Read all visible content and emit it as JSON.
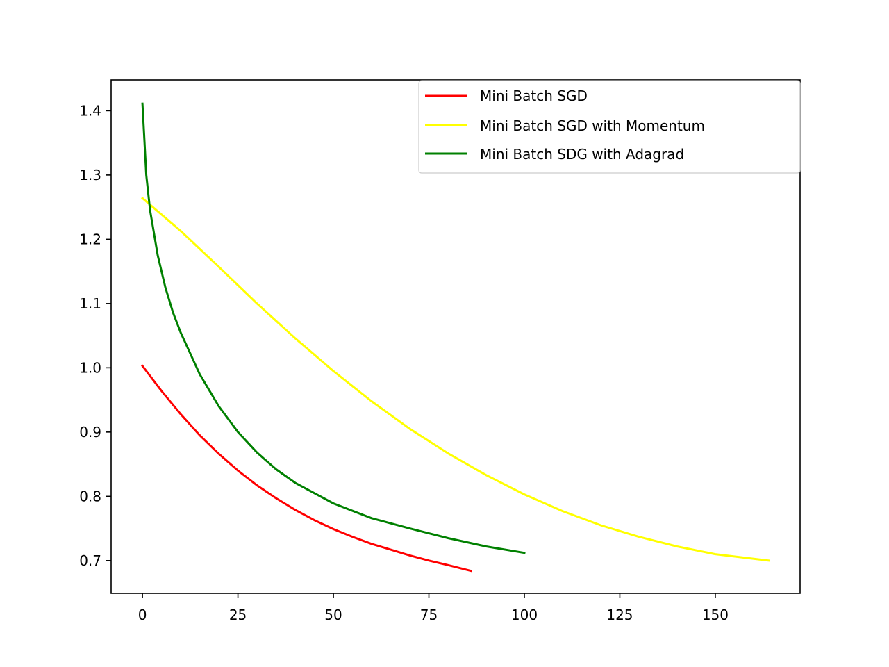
{
  "chart_data": {
    "type": "line",
    "title": "",
    "xlabel": "",
    "ylabel": "",
    "xlim": [
      -8.2,
      172.2
    ],
    "ylim": [
      0.649,
      1.448
    ],
    "grid": false,
    "legend_position": "top-right",
    "x_ticks": [
      {
        "value": 0,
        "label": "0"
      },
      {
        "value": 25,
        "label": "25"
      },
      {
        "value": 50,
        "label": "50"
      },
      {
        "value": 75,
        "label": "75"
      },
      {
        "value": 100,
        "label": "100"
      },
      {
        "value": 125,
        "label": "125"
      },
      {
        "value": 150,
        "label": "150"
      }
    ],
    "y_ticks": [
      {
        "value": 0.7,
        "label": "0.7"
      },
      {
        "value": 0.8,
        "label": "0.8"
      },
      {
        "value": 0.9,
        "label": "0.9"
      },
      {
        "value": 1.0,
        "label": "1.0"
      },
      {
        "value": 1.1,
        "label": "1.1"
      },
      {
        "value": 1.2,
        "label": "1.2"
      },
      {
        "value": 1.3,
        "label": "1.3"
      },
      {
        "value": 1.4,
        "label": "1.4"
      }
    ],
    "series": [
      {
        "name": "Mini Batch SGD",
        "color": "#ff0000",
        "x": [
          0,
          5,
          10,
          15,
          20,
          25,
          30,
          35,
          40,
          45,
          50,
          55,
          60,
          65,
          70,
          75,
          80,
          86
        ],
        "y": [
          1.003,
          0.964,
          0.928,
          0.895,
          0.866,
          0.84,
          0.817,
          0.797,
          0.779,
          0.763,
          0.749,
          0.737,
          0.726,
          0.717,
          0.708,
          0.7,
          0.693,
          0.684
        ]
      },
      {
        "name": "Mini Batch SGD with Momentum",
        "color": "#ffff00",
        "x": [
          0,
          10,
          20,
          30,
          40,
          50,
          60,
          70,
          80,
          90,
          100,
          110,
          120,
          130,
          140,
          150,
          164
        ],
        "y": [
          1.264,
          1.213,
          1.157,
          1.1,
          1.046,
          0.995,
          0.948,
          0.905,
          0.867,
          0.833,
          0.803,
          0.777,
          0.755,
          0.737,
          0.722,
          0.71,
          0.7
        ]
      },
      {
        "name": "Mini Batch SDG with Adagrad",
        "color": "#008000",
        "x": [
          0,
          1,
          2,
          4,
          6,
          8,
          10,
          15,
          20,
          25,
          30,
          35,
          40,
          50,
          60,
          70,
          80,
          90,
          100
        ],
        "y": [
          1.411,
          1.3,
          1.245,
          1.175,
          1.125,
          1.086,
          1.055,
          0.99,
          0.94,
          0.9,
          0.868,
          0.842,
          0.821,
          0.789,
          0.766,
          0.75,
          0.735,
          0.722,
          0.712
        ]
      }
    ]
  }
}
